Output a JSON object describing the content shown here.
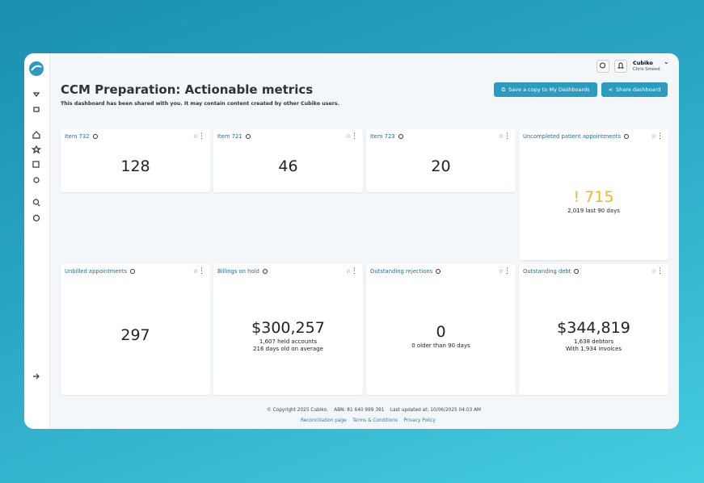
{
  "header": {
    "title": "CCM Preparation: Actionable metrics",
    "subtitle": "This dashboard has been shared with you. It may contain content created by other Cubiko users.",
    "buttons": [
      "Save a copy to My Dashboards",
      "Share dashboard"
    ]
  },
  "user": {
    "org": "Cubiko",
    "name": "Chris Smeed"
  },
  "cards": [
    {
      "title": "Item 732",
      "value": "128",
      "lines": []
    },
    {
      "title": "Item 721",
      "value": "46",
      "lines": []
    },
    {
      "title": "Item 723",
      "value": "20",
      "lines": []
    },
    {
      "title": "Uncompleted patient appointments",
      "alert": "!",
      "value": "715",
      "lines": [
        "2,019 last 90 days"
      ]
    },
    {
      "title": "Unbilled appointments",
      "value": "297",
      "lines": []
    },
    {
      "title": "Billings on hold",
      "value": "$300,257",
      "lines": [
        "1,607 held accounts",
        "216 days old on average"
      ]
    },
    {
      "title": "Outstanding rejections",
      "value": "0",
      "lines": [
        "0 older than 90 days"
      ]
    },
    {
      "title": "Outstanding debt",
      "value": "$344,819",
      "lines": [
        "1,638 debtors",
        "With 1,934 invoices"
      ]
    }
  ],
  "footer": {
    "info": [
      "© Copyright 2025 Cubiko.",
      "ABN: 81 640 999 391",
      "Last updated at: 10/06/2025 04:03 AM"
    ],
    "links": [
      "Reconciliation page",
      "Terms & Conditions",
      "Privacy Policy"
    ]
  }
}
